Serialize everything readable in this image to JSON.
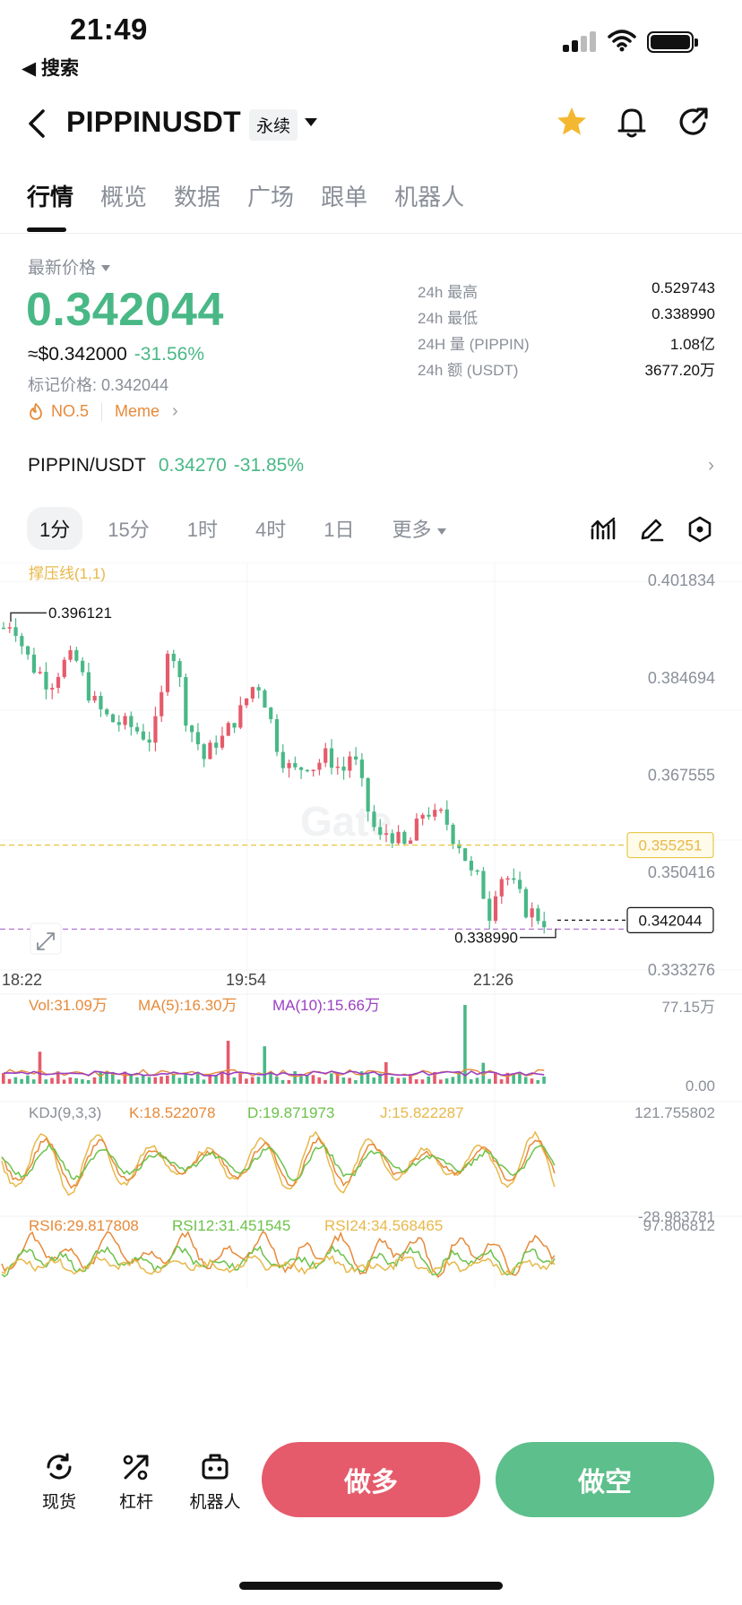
{
  "status_bar": {
    "time": "21:49",
    "back_label": "◀ 搜索"
  },
  "header": {
    "title": "PIPPINUSDT",
    "badge": "永续"
  },
  "tabs": [
    {
      "label": "行情",
      "active": true
    },
    {
      "label": "概览"
    },
    {
      "label": "数据"
    },
    {
      "label": "广场"
    },
    {
      "label": "跟单"
    },
    {
      "label": "机器人"
    }
  ],
  "price": {
    "latest_label": "最新价格",
    "last": "0.342044",
    "usd": "≈$0.342000",
    "change": "-31.56%",
    "mark": "标记价格: 0.342044",
    "rank": "NO.5",
    "tag": "Meme"
  },
  "stats": [
    {
      "k": "24h  最高",
      "v": "0.529743"
    },
    {
      "k": "24h  最低",
      "v": "0.338990"
    },
    {
      "k": "24H  量 (PIPPIN)",
      "v": "1.08亿"
    },
    {
      "k": "24h  额 (USDT)",
      "v": "3677.20万"
    }
  ],
  "spot": {
    "name": "PIPPIN/USDT",
    "price": "0.34270",
    "change": "-31.85%"
  },
  "timeframes": [
    {
      "label": "1分",
      "active": true
    },
    {
      "label": "15分"
    },
    {
      "label": "1时"
    },
    {
      "label": "4时"
    },
    {
      "label": "1日"
    },
    {
      "label": "更多"
    }
  ],
  "chart_data": {
    "type": "candlestick",
    "indicator_label": "撑压线(1,1)",
    "y_ticks": [
      "0.401834",
      "0.384694",
      "0.367555",
      "0.350416",
      "0.333276"
    ],
    "x_ticks": [
      "18:22",
      "19:54",
      "21:26"
    ],
    "ylim": [
      0.333276,
      0.401834
    ],
    "high_marker": "0.396121",
    "low_marker": "0.338990",
    "resistance_line": "0.355251",
    "last_price_tag": "0.342044",
    "close_path": [
      0.3935,
      0.395,
      0.3905,
      0.387,
      0.3855,
      0.3835,
      0.386,
      0.388,
      0.3875,
      0.383,
      0.38,
      0.378,
      0.377,
      0.3765,
      0.376,
      0.375,
      0.374,
      0.378,
      0.392,
      0.386,
      0.377,
      0.374,
      0.37,
      0.3735,
      0.374,
      0.377,
      0.379,
      0.383,
      0.3835,
      0.378,
      0.372,
      0.369,
      0.368,
      0.37,
      0.369,
      0.371,
      0.37,
      0.368,
      0.372,
      0.366,
      0.36,
      0.356,
      0.358,
      0.356,
      0.3545,
      0.358,
      0.362,
      0.36,
      0.3605,
      0.357,
      0.355,
      0.35,
      0.349,
      0.343,
      0.35,
      0.3495,
      0.347,
      0.344,
      0.343,
      0.342
    ],
    "volume": {
      "label": "Vol:31.09万",
      "ma5": "MA(5):16.30万",
      "ma10": "MA(10):15.66万",
      "y_ticks": [
        "77.15万",
        "0.00"
      ]
    },
    "kdj": {
      "label": "KDJ(9,3,3)",
      "k": "K:18.522078",
      "d": "D:19.871973",
      "j": "J:15.822287",
      "y_ticks": [
        "121.755802",
        "-28.983781"
      ]
    },
    "rsi": {
      "rsi6": "RSI6:29.817808",
      "rsi12": "RSI12:31.451545",
      "rsi24": "RSI24:34.568465",
      "y_ticks": [
        "97.806812"
      ]
    },
    "colors": {
      "up": "#e55b6b",
      "down": "#49b886",
      "ma5": "#e78a39",
      "ma10": "#9b3fc3",
      "resistance": "#e8c84a",
      "last": "#b678d6"
    }
  },
  "bottom": {
    "spot_label": "现货",
    "leverage_label": "杠杆",
    "bot_label": "机器人",
    "long_label": "做多",
    "short_label": "做空"
  }
}
